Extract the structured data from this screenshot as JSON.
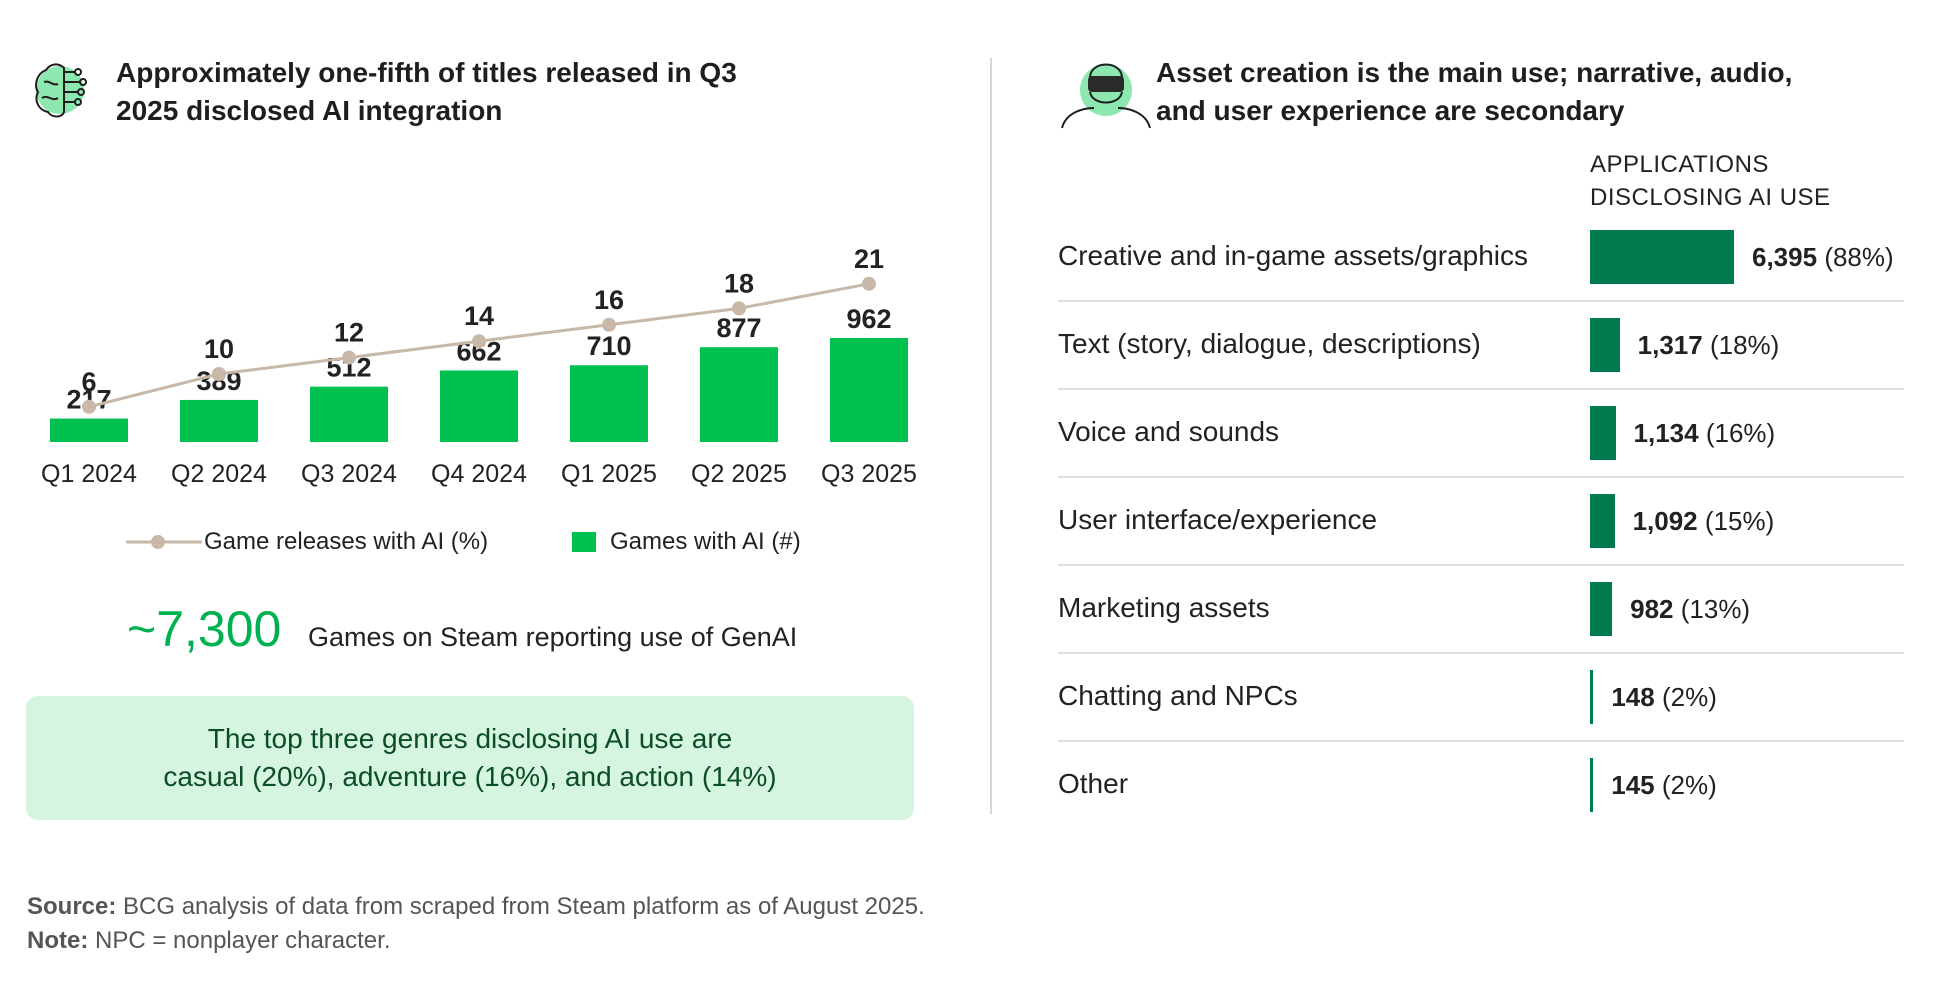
{
  "left": {
    "title_line1": "Approximately one-fifth of titles released in Q3",
    "title_line2": "2025 disclosed AI integration",
    "icon": "brain-circuit-icon",
    "legend_line": "Game releases with AI (%)",
    "legend_bar": "Games with AI (#)",
    "big_number": "~7,300",
    "big_caption": "Games on Steam reporting use of GenAI",
    "callout_line1": "The top three genres disclosing AI use are",
    "callout_line2": "casual (20%), adventure (16%), and action (14%)"
  },
  "right": {
    "title_line1": "Asset creation is the main use; narrative, audio,",
    "title_line2": "and user experience are secondary",
    "icon": "vr-headset-person-icon",
    "column_header_line1": "APPLICATIONS",
    "column_header_line2": "DISCLOSING AI USE",
    "rows": [
      {
        "label": "Creative and in-game assets/graphics",
        "value": "6,395",
        "pct": "(88%)",
        "num": 6395
      },
      {
        "label": "Text (story, dialogue, descriptions)",
        "value": "1,317",
        "pct": "(18%)",
        "num": 1317
      },
      {
        "label": "Voice and sounds",
        "value": "1,134",
        "pct": "(16%)",
        "num": 1134
      },
      {
        "label": "User interface/experience",
        "value": "1,092",
        "pct": "(15%)",
        "num": 1092
      },
      {
        "label": "Marketing assets",
        "value": "982",
        "pct": "(13%)",
        "num": 982
      },
      {
        "label": "Chatting and NPCs",
        "value": "148",
        "pct": "(2%)",
        "num": 148
      },
      {
        "label": "Other",
        "value": "145",
        "pct": "(2%)",
        "num": 145
      }
    ]
  },
  "footer": {
    "source_label": "Source:",
    "source_text": " BCG analysis of data from scraped from Steam platform as of August 2025.",
    "note_label": "Note:",
    "note_text": " NPC = nonplayer character."
  },
  "colors": {
    "bar_green": "#00c150",
    "line_tan": "#c8b8a8",
    "dark_green": "#007a4d",
    "accent_green": "#00b14f",
    "callout_bg": "#d6f5e1"
  },
  "chart_data": [
    {
      "type": "bar",
      "categories": [
        "Q1 2024",
        "Q2 2024",
        "Q3 2024",
        "Q4 2024",
        "Q1 2025",
        "Q2 2025",
        "Q3 2025"
      ],
      "series": [
        {
          "name": "Games with AI (#)",
          "type": "bar",
          "values": [
            217,
            389,
            512,
            662,
            710,
            877,
            962
          ]
        },
        {
          "name": "Game releases with AI (%)",
          "type": "line",
          "values": [
            6,
            10,
            12,
            14,
            16,
            18,
            21
          ]
        }
      ]
    },
    {
      "type": "bar",
      "orientation": "horizontal",
      "categories": [
        "Creative and in-game assets/graphics",
        "Text (story, dialogue, descriptions)",
        "Voice and sounds",
        "User interface/experience",
        "Marketing assets",
        "Chatting and NPCs",
        "Other"
      ],
      "values": [
        6395,
        1317,
        1134,
        1092,
        982,
        148,
        145
      ],
      "percent_labels": [
        "88%",
        "18%",
        "16%",
        "15%",
        "13%",
        "2%",
        "2%"
      ]
    }
  ]
}
